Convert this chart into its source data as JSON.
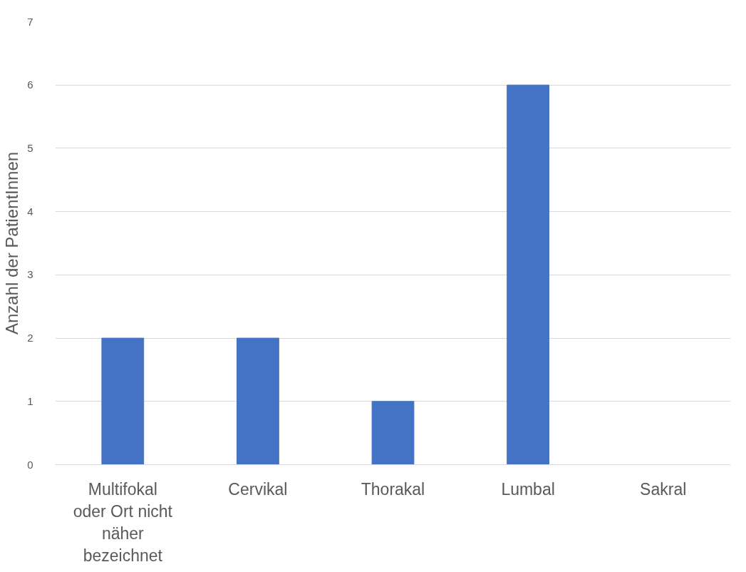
{
  "chart_data": {
    "type": "bar",
    "ylabel": "Anzahl der PatientInnen",
    "categories": [
      "Multifokal oder Ort nicht näher bezeichnet",
      "Cervikal",
      "Thorakal",
      "Lumbal",
      "Sakral"
    ],
    "values": [
      2,
      2,
      1,
      6,
      0
    ],
    "color": "#4472c4",
    "ylim": [
      0,
      7
    ],
    "yticks": [
      0,
      1,
      2,
      3,
      4,
      5,
      6,
      7
    ],
    "grid": "y"
  }
}
